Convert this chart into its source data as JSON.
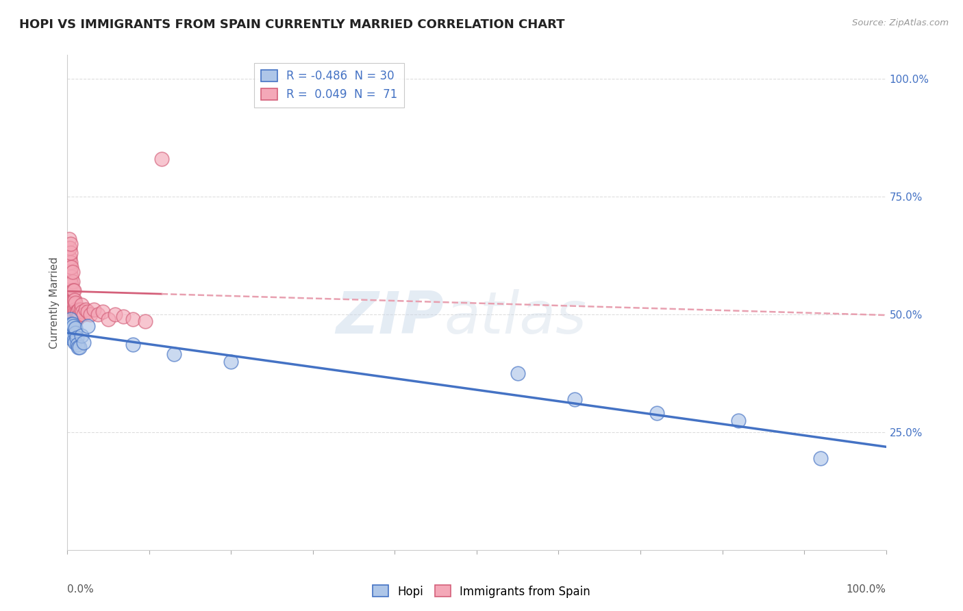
{
  "title": "HOPI VS IMMIGRANTS FROM SPAIN CURRENTLY MARRIED CORRELATION CHART",
  "source": "Source: ZipAtlas.com",
  "ylabel": "Currently Married",
  "hopi_color": "#aec6e8",
  "spain_color": "#f4a8b8",
  "hopi_line_color": "#4472c4",
  "spain_solid_color": "#d4607a",
  "spain_dash_color": "#e8a0b0",
  "background_color": "#ffffff",
  "grid_color": "#dddddd",
  "hopi_x": [
    0.001,
    0.002,
    0.002,
    0.003,
    0.003,
    0.004,
    0.004,
    0.005,
    0.005,
    0.006,
    0.007,
    0.008,
    0.009,
    0.01,
    0.01,
    0.011,
    0.012,
    0.013,
    0.015,
    0.017,
    0.02,
    0.025,
    0.08,
    0.13,
    0.2,
    0.55,
    0.62,
    0.72,
    0.82,
    0.92
  ],
  "hopi_y": [
    0.455,
    0.475,
    0.465,
    0.47,
    0.45,
    0.49,
    0.46,
    0.48,
    0.455,
    0.48,
    0.475,
    0.445,
    0.44,
    0.46,
    0.47,
    0.45,
    0.435,
    0.43,
    0.43,
    0.455,
    0.44,
    0.475,
    0.435,
    0.415,
    0.4,
    0.375,
    0.32,
    0.29,
    0.275,
    0.195
  ],
  "spain_x": [
    0.001,
    0.001,
    0.001,
    0.002,
    0.002,
    0.002,
    0.002,
    0.002,
    0.002,
    0.003,
    0.003,
    0.003,
    0.003,
    0.003,
    0.003,
    0.003,
    0.003,
    0.004,
    0.004,
    0.004,
    0.004,
    0.004,
    0.004,
    0.005,
    0.005,
    0.005,
    0.005,
    0.005,
    0.005,
    0.005,
    0.005,
    0.005,
    0.006,
    0.006,
    0.006,
    0.006,
    0.006,
    0.007,
    0.007,
    0.007,
    0.007,
    0.007,
    0.008,
    0.008,
    0.008,
    0.009,
    0.009,
    0.01,
    0.01,
    0.011,
    0.011,
    0.012,
    0.013,
    0.014,
    0.015,
    0.016,
    0.017,
    0.018,
    0.02,
    0.022,
    0.025,
    0.028,
    0.032,
    0.037,
    0.043,
    0.05,
    0.058,
    0.068,
    0.08,
    0.095,
    0.115
  ],
  "spain_y": [
    0.54,
    0.57,
    0.61,
    0.55,
    0.57,
    0.6,
    0.62,
    0.64,
    0.66,
    0.54,
    0.56,
    0.58,
    0.6,
    0.62,
    0.64,
    0.54,
    0.56,
    0.54,
    0.57,
    0.59,
    0.61,
    0.63,
    0.65,
    0.52,
    0.54,
    0.56,
    0.58,
    0.6,
    0.505,
    0.525,
    0.545,
    0.565,
    0.51,
    0.53,
    0.55,
    0.57,
    0.59,
    0.51,
    0.53,
    0.55,
    0.505,
    0.525,
    0.51,
    0.53,
    0.55,
    0.51,
    0.53,
    0.505,
    0.525,
    0.505,
    0.49,
    0.505,
    0.495,
    0.51,
    0.5,
    0.51,
    0.52,
    0.505,
    0.5,
    0.51,
    0.505,
    0.5,
    0.51,
    0.5,
    0.505,
    0.49,
    0.5,
    0.495,
    0.49,
    0.485,
    0.83
  ],
  "xlim": [
    0.0,
    1.0
  ],
  "ylim": [
    0.0,
    1.05
  ],
  "hopi_R": -0.486,
  "hopi_N": 30,
  "spain_R": 0.049,
  "spain_N": 71,
  "legend_hopi_R": "-0.486",
  "legend_hopi_N": "30",
  "legend_spain_R": "0.049",
  "legend_spain_N": "71",
  "yticks": [
    0.25,
    0.5,
    0.75,
    1.0
  ],
  "ytick_labels": [
    "25.0%",
    "50.0%",
    "75.0%",
    "100.0%"
  ]
}
